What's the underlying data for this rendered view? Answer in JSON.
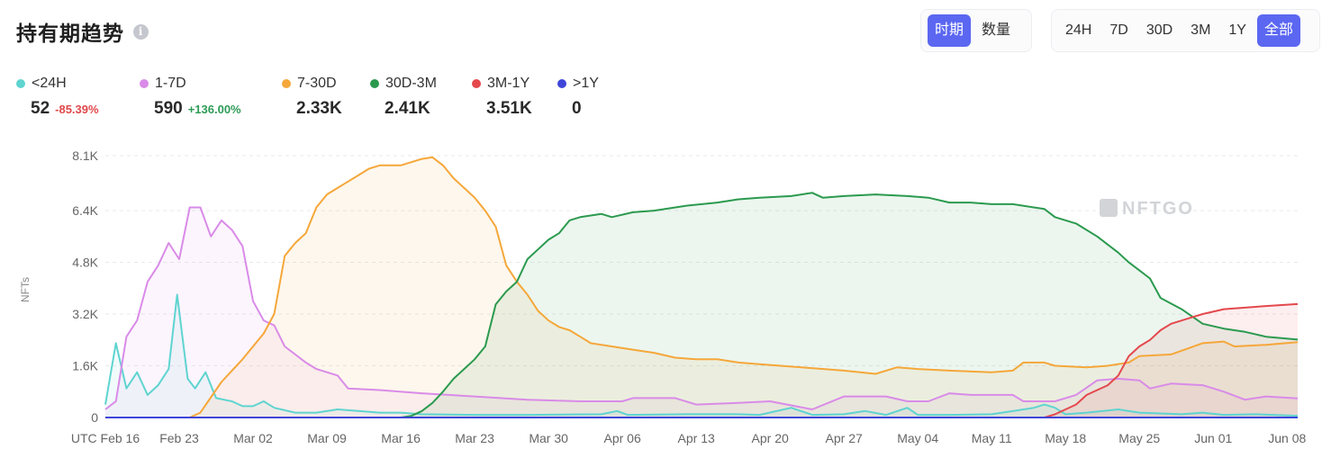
{
  "header": {
    "title": "持有期趋势",
    "info_icon": "i"
  },
  "view_toggle": {
    "options": [
      "时期",
      "数量"
    ],
    "active": "时期"
  },
  "range_toggle": {
    "options": [
      "24H",
      "7D",
      "30D",
      "3M",
      "1Y",
      "全部"
    ],
    "active": "全部"
  },
  "legend": [
    {
      "name": "<24H",
      "value": "52",
      "change": "-85.39%",
      "color": "#5fd4d0"
    },
    {
      "name": "1-7D",
      "value": "590",
      "change": "+136.00%",
      "color": "#d98be8"
    },
    {
      "name": "7-30D",
      "value": "2.33K",
      "change": "",
      "color": "#f5a73a"
    },
    {
      "name": "30D-3M",
      "value": "2.41K",
      "change": "",
      "color": "#2b9a4e"
    },
    {
      "name": "3M-1Y",
      "value": "3.51K",
      "change": "",
      "color": "#e4484c"
    },
    {
      "name": ">1Y",
      "value": "0",
      "change": "",
      "color": "#3f45d8"
    }
  ],
  "watermark": "NFTGO",
  "chart_data": {
    "type": "area",
    "ylabel": "NFTs",
    "y_ticks": [
      "0",
      "1.6K",
      "3.2K",
      "4.8K",
      "6.4K",
      "8.1K"
    ],
    "y_tick_values": [
      0,
      1600,
      3200,
      4800,
      6400,
      8100
    ],
    "ylim": [
      0,
      8100
    ],
    "x_ticks": [
      "UTC Feb 16",
      "Feb 23",
      "Mar 02",
      "Mar 09",
      "Mar 16",
      "Mar 23",
      "Mar 30",
      "Apr 06",
      "Apr 13",
      "Apr 20",
      "Apr 27",
      "May 04",
      "May 11",
      "May 18",
      "May 25",
      "Jun 01",
      "Jun 08"
    ],
    "x_tick_days": [
      0,
      7,
      14,
      21,
      28,
      35,
      42,
      49,
      56,
      63,
      70,
      77,
      84,
      91,
      98,
      105,
      112
    ],
    "xlim_days": [
      0,
      113
    ],
    "grid": true,
    "series": [
      {
        "name": "<24H",
        "color": "#5fd4d0",
        "points": [
          [
            0,
            400
          ],
          [
            1,
            2300
          ],
          [
            2,
            900
          ],
          [
            3,
            1400
          ],
          [
            4,
            700
          ],
          [
            5,
            1000
          ],
          [
            6,
            1500
          ],
          [
            6.8,
            3800
          ],
          [
            7.8,
            1200
          ],
          [
            8.5,
            900
          ],
          [
            9.5,
            1400
          ],
          [
            10.5,
            600
          ],
          [
            12,
            500
          ],
          [
            13,
            350
          ],
          [
            14,
            350
          ],
          [
            15,
            500
          ],
          [
            16,
            300
          ],
          [
            18,
            150
          ],
          [
            20,
            150
          ],
          [
            22,
            250
          ],
          [
            24,
            200
          ],
          [
            26,
            150
          ],
          [
            28,
            150
          ],
          [
            30,
            100
          ],
          [
            35,
            80
          ],
          [
            40,
            80
          ],
          [
            47,
            100
          ],
          [
            48.5,
            200
          ],
          [
            49.5,
            80
          ],
          [
            55,
            100
          ],
          [
            60,
            100
          ],
          [
            62,
            80
          ],
          [
            65,
            300
          ],
          [
            67,
            80
          ],
          [
            70,
            100
          ],
          [
            72,
            200
          ],
          [
            74,
            80
          ],
          [
            76,
            300
          ],
          [
            77,
            80
          ],
          [
            80,
            80
          ],
          [
            84,
            100
          ],
          [
            88,
            300
          ],
          [
            89,
            400
          ],
          [
            90,
            300
          ],
          [
            91,
            100
          ],
          [
            93,
            150
          ],
          [
            96,
            250
          ],
          [
            98,
            150
          ],
          [
            102,
            100
          ],
          [
            104,
            150
          ],
          [
            106,
            80
          ],
          [
            109,
            100
          ],
          [
            113,
            52
          ]
        ]
      },
      {
        "name": "1-7D",
        "color": "#d98be8",
        "points": [
          [
            0,
            250
          ],
          [
            1,
            500
          ],
          [
            2,
            2500
          ],
          [
            3,
            3000
          ],
          [
            4,
            4200
          ],
          [
            5,
            4700
          ],
          [
            6,
            5400
          ],
          [
            7,
            4900
          ],
          [
            8,
            6500
          ],
          [
            9,
            6500
          ],
          [
            10,
            5600
          ],
          [
            11,
            6100
          ],
          [
            12,
            5800
          ],
          [
            13,
            5300
          ],
          [
            14,
            3600
          ],
          [
            15,
            3000
          ],
          [
            16,
            2850
          ],
          [
            17,
            2200
          ],
          [
            19,
            1700
          ],
          [
            20,
            1500
          ],
          [
            22,
            1300
          ],
          [
            23,
            900
          ],
          [
            26,
            850
          ],
          [
            30,
            750
          ],
          [
            35,
            650
          ],
          [
            40,
            550
          ],
          [
            45,
            500
          ],
          [
            49,
            500
          ],
          [
            50,
            600
          ],
          [
            54,
            600
          ],
          [
            56,
            400
          ],
          [
            60,
            450
          ],
          [
            63,
            500
          ],
          [
            67,
            250
          ],
          [
            70,
            650
          ],
          [
            74,
            650
          ],
          [
            76,
            500
          ],
          [
            78,
            500
          ],
          [
            80,
            750
          ],
          [
            82,
            700
          ],
          [
            86,
            700
          ],
          [
            87,
            500
          ],
          [
            90,
            500
          ],
          [
            92,
            700
          ],
          [
            94,
            1150
          ],
          [
            96,
            1200
          ],
          [
            98,
            1150
          ],
          [
            99,
            900
          ],
          [
            101,
            1050
          ],
          [
            104,
            1000
          ],
          [
            106,
            800
          ],
          [
            108,
            550
          ],
          [
            110,
            650
          ],
          [
            113,
            590
          ]
        ]
      },
      {
        "name": "7-30D",
        "color": "#f5a73a",
        "points": [
          [
            0,
            0
          ],
          [
            8,
            0
          ],
          [
            9,
            150
          ],
          [
            11,
            1100
          ],
          [
            13,
            1800
          ],
          [
            14,
            2200
          ],
          [
            15,
            2600
          ],
          [
            16,
            3200
          ],
          [
            17,
            5000
          ],
          [
            18,
            5400
          ],
          [
            19,
            5700
          ],
          [
            20,
            6500
          ],
          [
            21,
            6900
          ],
          [
            22,
            7100
          ],
          [
            24,
            7500
          ],
          [
            25,
            7700
          ],
          [
            26,
            7800
          ],
          [
            28,
            7800
          ],
          [
            30,
            8000
          ],
          [
            31,
            8050
          ],
          [
            32,
            7800
          ],
          [
            33,
            7400
          ],
          [
            34,
            7100
          ],
          [
            35,
            6800
          ],
          [
            36,
            6400
          ],
          [
            37,
            5900
          ],
          [
            38,
            4700
          ],
          [
            39,
            4200
          ],
          [
            40,
            3800
          ],
          [
            41,
            3300
          ],
          [
            42,
            3000
          ],
          [
            43,
            2800
          ],
          [
            44,
            2700
          ],
          [
            45,
            2500
          ],
          [
            46,
            2300
          ],
          [
            48,
            2200
          ],
          [
            50,
            2100
          ],
          [
            52,
            2000
          ],
          [
            54,
            1850
          ],
          [
            56,
            1800
          ],
          [
            58,
            1800
          ],
          [
            60,
            1700
          ],
          [
            62,
            1650
          ],
          [
            66,
            1550
          ],
          [
            70,
            1450
          ],
          [
            73,
            1350
          ],
          [
            75,
            1550
          ],
          [
            77,
            1500
          ],
          [
            80,
            1450
          ],
          [
            84,
            1400
          ],
          [
            86,
            1450
          ],
          [
            87,
            1700
          ],
          [
            89,
            1700
          ],
          [
            90,
            1600
          ],
          [
            93,
            1550
          ],
          [
            95,
            1600
          ],
          [
            97,
            1700
          ],
          [
            98,
            1900
          ],
          [
            101,
            1950
          ],
          [
            104,
            2300
          ],
          [
            106,
            2350
          ],
          [
            107,
            2200
          ],
          [
            110,
            2250
          ],
          [
            113,
            2330
          ]
        ]
      },
      {
        "name": "30D-3M",
        "color": "#2b9a4e",
        "points": [
          [
            0,
            0
          ],
          [
            28,
            0
          ],
          [
            29,
            50
          ],
          [
            30,
            200
          ],
          [
            31,
            450
          ],
          [
            32,
            800
          ],
          [
            33,
            1200
          ],
          [
            34,
            1500
          ],
          [
            35,
            1800
          ],
          [
            36,
            2200
          ],
          [
            37,
            3500
          ],
          [
            38,
            3900
          ],
          [
            39,
            4200
          ],
          [
            40,
            4900
          ],
          [
            41,
            5200
          ],
          [
            42,
            5500
          ],
          [
            43,
            5700
          ],
          [
            44,
            6100
          ],
          [
            45,
            6200
          ],
          [
            47,
            6300
          ],
          [
            48,
            6200
          ],
          [
            50,
            6350
          ],
          [
            52,
            6400
          ],
          [
            55,
            6550
          ],
          [
            58,
            6650
          ],
          [
            60,
            6750
          ],
          [
            62,
            6800
          ],
          [
            65,
            6850
          ],
          [
            67,
            6950
          ],
          [
            68,
            6800
          ],
          [
            70,
            6850
          ],
          [
            73,
            6900
          ],
          [
            76,
            6850
          ],
          [
            78,
            6800
          ],
          [
            80,
            6650
          ],
          [
            82,
            6650
          ],
          [
            84,
            6600
          ],
          [
            86,
            6600
          ],
          [
            89,
            6450
          ],
          [
            90,
            6200
          ],
          [
            92,
            6000
          ],
          [
            94,
            5600
          ],
          [
            96,
            5100
          ],
          [
            97,
            4800
          ],
          [
            99,
            4300
          ],
          [
            100,
            3700
          ],
          [
            102,
            3350
          ],
          [
            104,
            2900
          ],
          [
            106,
            2750
          ],
          [
            108,
            2650
          ],
          [
            110,
            2500
          ],
          [
            113,
            2410
          ]
        ]
      },
      {
        "name": "3M-1Y",
        "color": "#e4484c",
        "points": [
          [
            0,
            0
          ],
          [
            89,
            0
          ],
          [
            90,
            100
          ],
          [
            92,
            400
          ],
          [
            93,
            700
          ],
          [
            95,
            1000
          ],
          [
            96,
            1300
          ],
          [
            97,
            1900
          ],
          [
            98,
            2200
          ],
          [
            99,
            2400
          ],
          [
            100,
            2700
          ],
          [
            101,
            2900
          ],
          [
            103,
            3100
          ],
          [
            104,
            3200
          ],
          [
            106,
            3350
          ],
          [
            108,
            3400
          ],
          [
            110,
            3450
          ],
          [
            113,
            3510
          ]
        ]
      },
      {
        "name": ">1Y",
        "color": "#3f45d8",
        "points": [
          [
            0,
            0
          ],
          [
            113,
            0
          ]
        ]
      }
    ]
  }
}
